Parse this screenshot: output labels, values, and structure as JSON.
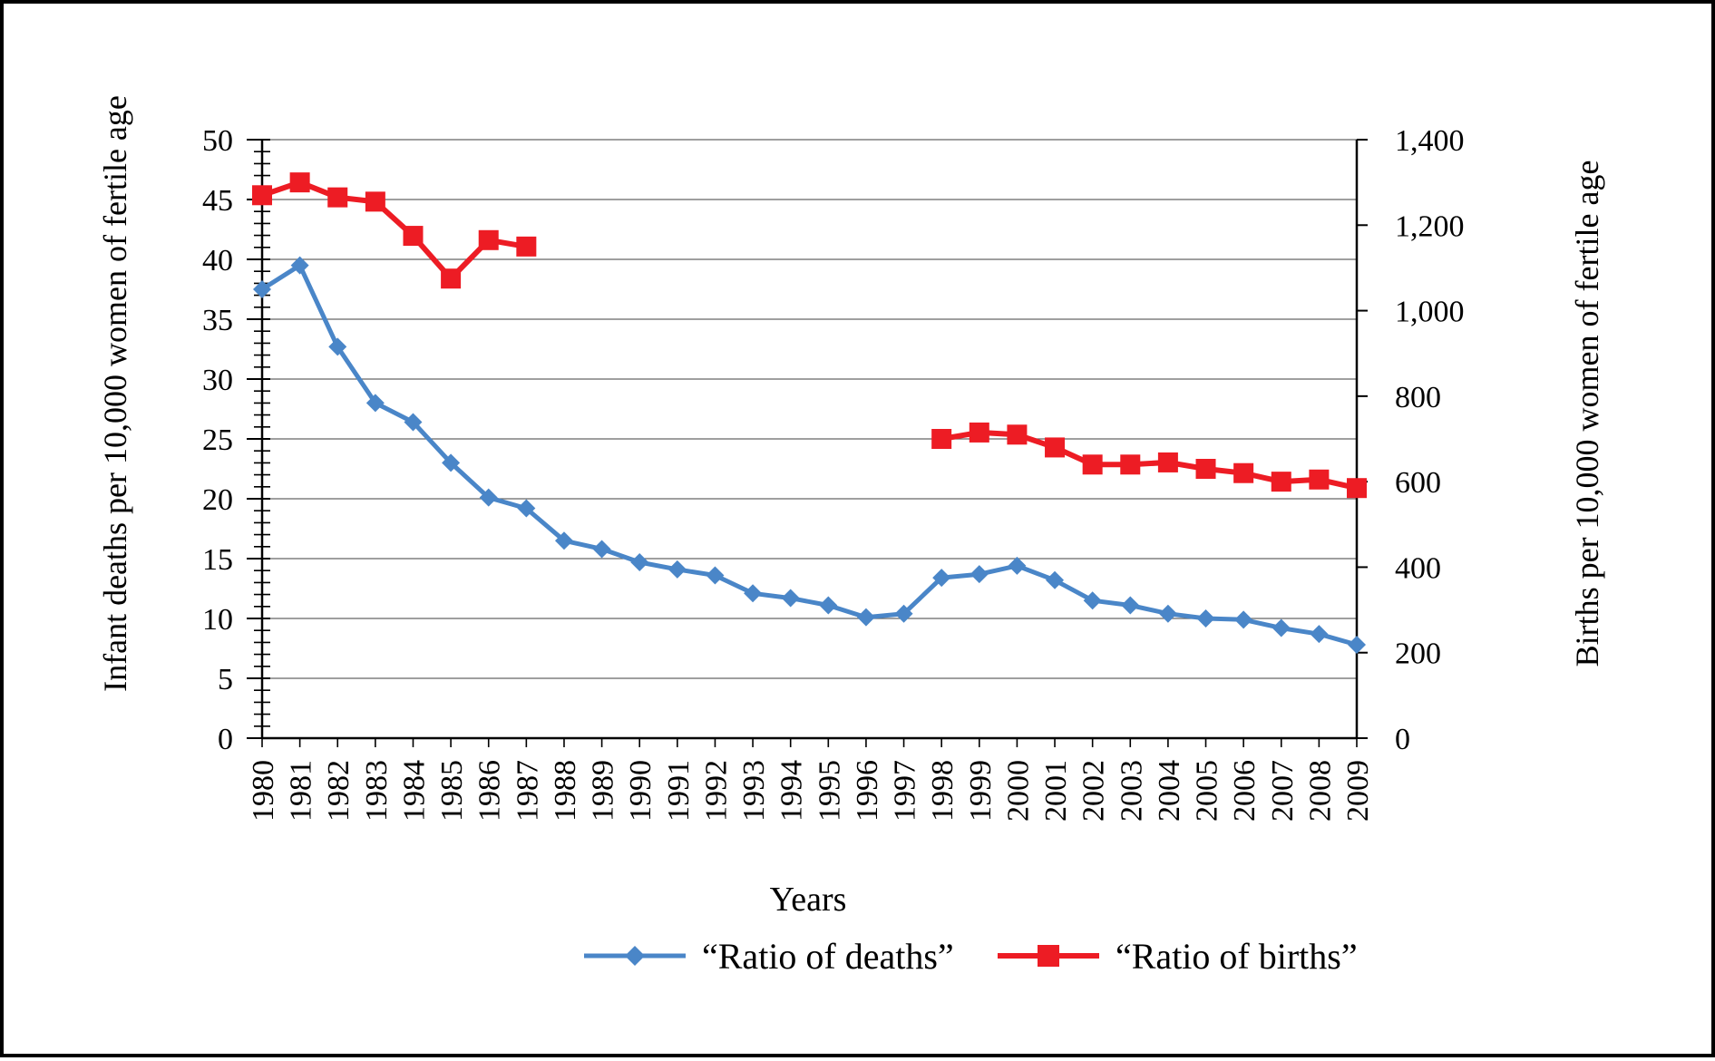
{
  "chart_data": {
    "type": "line",
    "title": "",
    "xlabel": "Years",
    "ylabel_left": "Infant deaths per 10,000 women of fertile age",
    "ylabel_right": "Births per 10,000 women of fertile age",
    "grid": "horizontal-major",
    "grid_color": "#666666",
    "axis_color": "#000000",
    "legend_position": "bottom",
    "x_categories": [
      "1980",
      "1981",
      "1982",
      "1983",
      "1984",
      "1985",
      "1986",
      "1987",
      "1988",
      "1989",
      "1990",
      "1991",
      "1992",
      "1993",
      "1994",
      "1995",
      "1996",
      "1997",
      "1998",
      "1999",
      "2000",
      "2001",
      "2002",
      "2003",
      "2004",
      "2005",
      "2006",
      "2007",
      "2008",
      "2009"
    ],
    "left_axis": {
      "min": 0,
      "max": 50,
      "major_step": 5,
      "minor_step": 1,
      "tick_labels": [
        "0",
        "5",
        "10",
        "15",
        "20",
        "25",
        "30",
        "35",
        "40",
        "45",
        "50"
      ]
    },
    "right_axis": {
      "min": 0,
      "max": 1400,
      "major_step": 200,
      "tick_labels": [
        "0",
        "200",
        "400",
        "600",
        "800",
        "1,000",
        "1,200",
        "1,400"
      ]
    },
    "series": [
      {
        "name": "“Ratio of deaths”",
        "axis": "left",
        "color": "#4a86c8",
        "marker": "diamond",
        "values": [
          37.5,
          39.5,
          32.7,
          28.0,
          26.4,
          23.0,
          20.1,
          19.2,
          16.5,
          15.8,
          14.7,
          14.1,
          13.6,
          12.1,
          11.7,
          11.1,
          10.1,
          10.4,
          13.4,
          13.7,
          14.4,
          13.2,
          11.5,
          11.1,
          10.4,
          10.0,
          9.9,
          9.2,
          8.7,
          7.8
        ]
      },
      {
        "name": "“Ratio of births”",
        "axis": "right",
        "color": "#ed1c24",
        "marker": "square",
        "values": [
          1270,
          1300,
          1265,
          1255,
          1175,
          1075,
          1165,
          1150,
          null,
          null,
          null,
          null,
          null,
          null,
          null,
          null,
          null,
          null,
          700,
          715,
          710,
          680,
          640,
          640,
          645,
          630,
          620,
          600,
          605,
          585
        ]
      }
    ]
  }
}
